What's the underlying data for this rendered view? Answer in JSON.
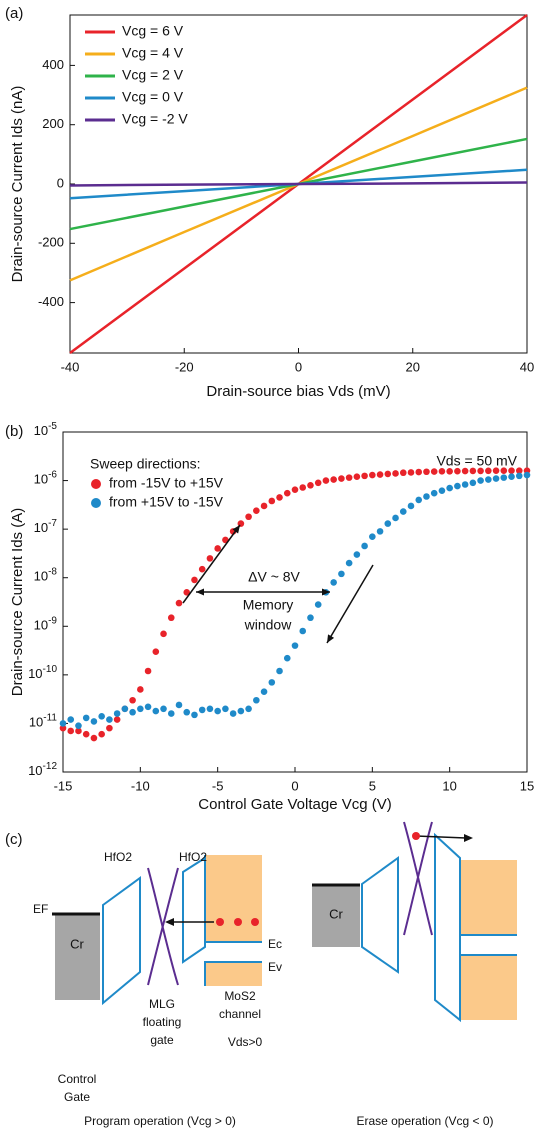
{
  "chart_data": [
    {
      "type": "line",
      "panel_label": "(a)",
      "x_label": "Drain-source bias Vds (mV)",
      "y_label": "Drain-source Current Ids (nA)",
      "x": [
        -40,
        -20,
        0,
        20,
        40
      ],
      "series": [
        {
          "name": "Vcg = 6 V",
          "color": "#e8232a",
          "values": [
            -570,
            -285,
            0,
            285,
            570
          ]
        },
        {
          "name": "Vcg = 4 V",
          "color": "#f5ae1b",
          "values": [
            -325,
            -162,
            0,
            162,
            325
          ]
        },
        {
          "name": "Vcg = 2 V",
          "color": "#2fb34a",
          "values": [
            -152,
            -76,
            0,
            76,
            152
          ]
        },
        {
          "name": "Vcg = 0 V",
          "color": "#1f8ac9",
          "values": [
            -48,
            -24,
            0,
            24,
            48
          ]
        },
        {
          "name": "Vcg = -2 V",
          "color": "#5b2d90",
          "values": [
            -5,
            -2,
            0,
            2,
            5
          ]
        }
      ],
      "xlim": [
        -40,
        40
      ],
      "xticks": [
        -40,
        -20,
        0,
        20,
        40
      ],
      "ylim": [
        -570,
        570
      ],
      "yticks": [
        -400,
        -200,
        0,
        200,
        400
      ],
      "legend": "upper-left",
      "grid": false
    },
    {
      "type": "scatter",
      "panel_label": "(b)",
      "log_y": true,
      "x_label": "Control Gate Voltage Vcg (V)",
      "y_label": "Drain-source Current Ids (A)",
      "legend_title": "Sweep directions:",
      "legend": "upper-left",
      "annotations": {
        "bias": "Vds = 50 mV",
        "delta": "ΔV ~ 8V",
        "window": [
          "Memory",
          "window"
        ]
      },
      "x": [
        -15,
        -14.5,
        -14,
        -13.5,
        -13,
        -12.5,
        -12,
        -11.5,
        -11,
        -10.5,
        -10,
        -9.5,
        -9,
        -8.5,
        -8,
        -7.5,
        -7,
        -6.5,
        -6,
        -5.5,
        -5,
        -4.5,
        -4,
        -3.5,
        -3,
        -2.5,
        -2,
        -1.5,
        -1,
        -0.5,
        0,
        0.5,
        1,
        1.5,
        2,
        2.5,
        3,
        3.5,
        4,
        4.5,
        5,
        5.5,
        6,
        6.5,
        7,
        7.5,
        8,
        8.5,
        9,
        9.5,
        10,
        10.5,
        11,
        11.5,
        12,
        12.5,
        13,
        13.5,
        14,
        14.5,
        15
      ],
      "series": [
        {
          "name": "from -15V to +15V",
          "color": "#e8232a",
          "values": [
            8e-12,
            7e-12,
            7e-12,
            6e-12,
            5e-12,
            6e-12,
            8e-12,
            1.2e-11,
            2e-11,
            3e-11,
            5e-11,
            1.2e-10,
            3e-10,
            7e-10,
            1.5e-09,
            3e-09,
            5e-09,
            9e-09,
            1.5e-08,
            2.5e-08,
            4e-08,
            6e-08,
            9e-08,
            1.3e-07,
            1.8e-07,
            2.4e-07,
            3e-07,
            3.8e-07,
            4.5e-07,
            5.5e-07,
            6.5e-07,
            7.2e-07,
            8e-07,
            9e-07,
            1e-06,
            1.05e-06,
            1.1e-06,
            1.15e-06,
            1.2e-06,
            1.25e-06,
            1.3e-06,
            1.33e-06,
            1.37e-06,
            1.4e-06,
            1.45e-06,
            1.47e-06,
            1.5e-06,
            1.52e-06,
            1.53e-06,
            1.55e-06,
            1.55e-06,
            1.56e-06,
            1.57e-06,
            1.58e-06,
            1.58e-06,
            1.59e-06,
            1.6e-06,
            1.6e-06,
            1.6e-06,
            1.6e-06,
            1.6e-06
          ]
        },
        {
          "name": "from +15V to -15V",
          "color": "#1f8ac9",
          "values": [
            1e-11,
            1.2e-11,
            9e-12,
            1.3e-11,
            1.1e-11,
            1.4e-11,
            1.2e-11,
            1.6e-11,
            2e-11,
            1.7e-11,
            2e-11,
            2.2e-11,
            1.8e-11,
            2e-11,
            1.6e-11,
            2.4e-11,
            1.7e-11,
            1.5e-11,
            1.9e-11,
            2e-11,
            1.8e-11,
            2e-11,
            1.6e-11,
            1.8e-11,
            2e-11,
            3e-11,
            4.5e-11,
            7e-11,
            1.2e-10,
            2.2e-10,
            4e-10,
            8e-10,
            1.5e-09,
            2.8e-09,
            5e-09,
            8e-09,
            1.2e-08,
            2e-08,
            3e-08,
            4.5e-08,
            7e-08,
            9e-08,
            1.3e-07,
            1.7e-07,
            2.3e-07,
            3e-07,
            4e-07,
            4.7e-07,
            5.5e-07,
            6.2e-07,
            7e-07,
            7.7e-07,
            8.3e-07,
            9e-07,
            1e-06,
            1.05e-06,
            1.1e-06,
            1.15e-06,
            1.2e-06,
            1.25e-06,
            1.3e-06
          ]
        }
      ],
      "xlim": [
        -15,
        15
      ],
      "xticks": [
        -15,
        -10,
        -5,
        0,
        5,
        10,
        15
      ],
      "ylim": [
        1e-12,
        1e-05
      ],
      "yticks": [
        {
          "value": 1e-12,
          "label": "10-12"
        },
        {
          "value": 1e-11,
          "label": "10-11"
        },
        {
          "value": 1e-10,
          "label": "10-10"
        },
        {
          "value": 1e-09,
          "label": "10-9"
        },
        {
          "value": 1e-08,
          "label": "10-8"
        },
        {
          "value": 1e-07,
          "label": "10-7"
        },
        {
          "value": 1e-06,
          "label": "10-6"
        },
        {
          "value": 1e-05,
          "label": "10-5"
        }
      ],
      "grid": false
    }
  ],
  "diagram": {
    "panel_label": "(c)",
    "program": {
      "hfo2_left": "HfO2",
      "hfo2_right": "HfO2",
      "ec": "Ec",
      "ev": "Ev",
      "ef": "EF",
      "cr": "Cr",
      "mlg": [
        "MLG",
        "floating",
        "gate"
      ],
      "mos2": [
        "MoS2",
        "channel"
      ],
      "vds": "Vds>0",
      "control_gate": [
        "Control",
        "Gate"
      ],
      "caption": "Program operation (Vcg > 0)"
    },
    "erase": {
      "cr": "Cr",
      "caption": "Erase operation (Vcg < 0)"
    }
  }
}
